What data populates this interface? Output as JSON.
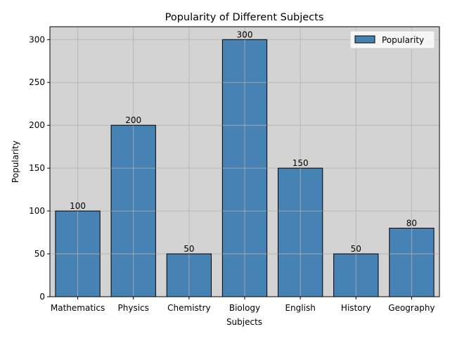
{
  "chart_data": {
    "type": "bar",
    "title": "Popularity of Different Subjects",
    "xlabel": "Subjects",
    "ylabel": "Popularity",
    "categories": [
      "Mathematics",
      "Physics",
      "Chemistry",
      "Biology",
      "English",
      "History",
      "Geography"
    ],
    "series": [
      {
        "name": "Popularity",
        "values": [
          100,
          200,
          50,
          300,
          150,
          50,
          80
        ]
      }
    ],
    "ylim": [
      0,
      315
    ],
    "yticks": [
      0,
      50,
      100,
      150,
      200,
      250,
      300
    ],
    "grid": true,
    "legend_position": "top-right",
    "show_value_labels": true
  },
  "colors": {
    "bar_fill": "#4682b4",
    "bar_edge": "#000000",
    "axes_background": "#d3d3d3",
    "grid": "#b0b0b0"
  }
}
